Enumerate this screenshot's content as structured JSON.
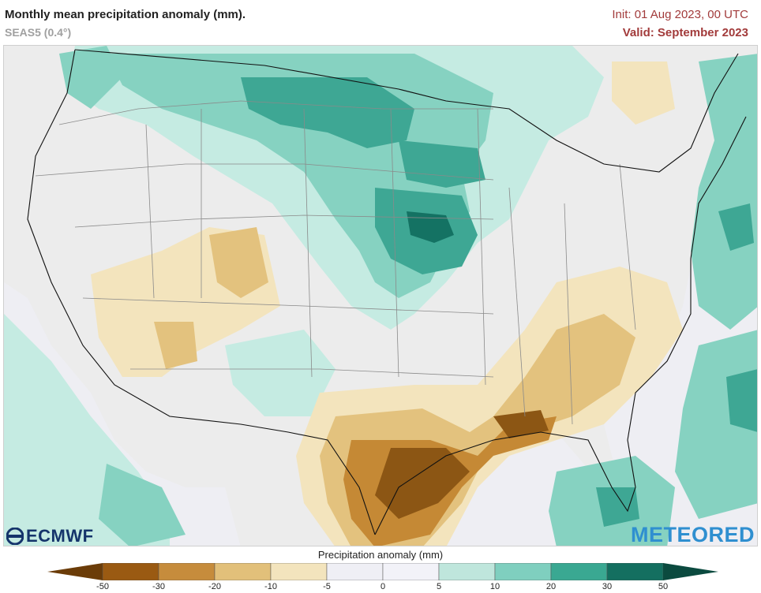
{
  "header": {
    "title": "Monthly mean precipitation anomaly (mm).",
    "model": "SEAS5 (0.4°)",
    "init": "Init: 01 Aug 2023, 00 UTC",
    "valid": "Valid: September 2023"
  },
  "logos": {
    "ecmwf": "ECMWF",
    "meteored": "METEORED"
  },
  "legend": {
    "title": "Precipitation anomaly (mm)",
    "ticks": [
      "-50",
      "-30",
      "-20",
      "-10",
      "-5",
      "0",
      "5",
      "10",
      "20",
      "30",
      "50"
    ],
    "colors": [
      "#6b3c08",
      "#9a5a12",
      "#c68c3c",
      "#e2c07a",
      "#f3e4bd",
      "#efeff5",
      "#f2f2f8",
      "#bfe6dc",
      "#7fcfbf",
      "#3aa892",
      "#146f60",
      "#0b4a3f"
    ]
  },
  "colors": {
    "land": "#efefef",
    "ocean": "#ececf2",
    "dry_strong": "#8c5614",
    "dry_medium": "#c58935",
    "dry_light": "#e3c27e",
    "dry_faint": "#f3e4bd",
    "wet_faint": "#c5ebe2",
    "wet_light": "#86d2c1",
    "wet_medium": "#3ea794",
    "wet_strong": "#147263",
    "borders": "#7a7a7a",
    "coast": "#111111"
  }
}
